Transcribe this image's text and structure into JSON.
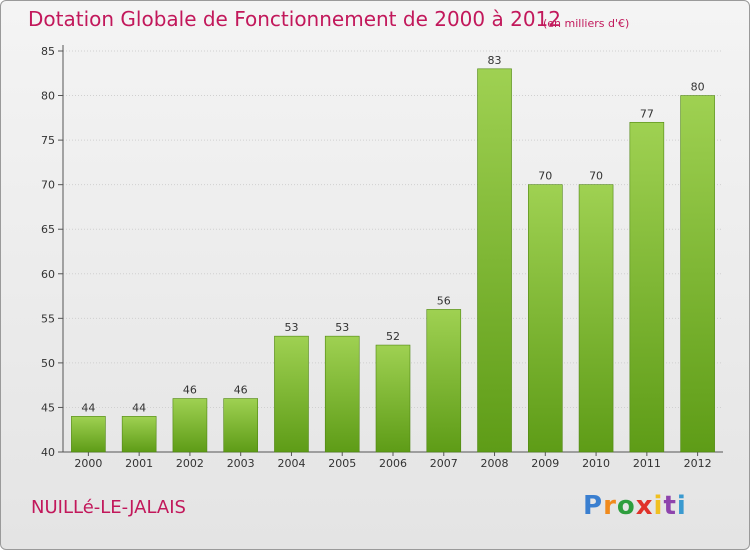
{
  "header": {
    "title": "Dotation Globale de Fonctionnement de 2000 à 2012",
    "unit": "(en milliers d'€)"
  },
  "footer": {
    "commune": "NUILLé-LE-JALAIS",
    "logo": {
      "letters": [
        "P",
        "r",
        "o",
        "x",
        "i",
        "t",
        "i"
      ],
      "colors": [
        "#3a7fd0",
        "#f08a1c",
        "#2e9e3e",
        "#e0322a",
        "#f0c020",
        "#8e44ad",
        "#3a9ad0"
      ]
    }
  },
  "colors": {
    "title": "#c2185b",
    "bar_top": "#9fd152",
    "bar_bottom": "#5e9c17",
    "bar_side": "#4f8612"
  },
  "chart_data": {
    "type": "bar",
    "title": "Dotation Globale de Fonctionnement de 2000 à 2012",
    "subtitle": "(en milliers d'€)",
    "categories": [
      "2000",
      "2001",
      "2002",
      "2003",
      "2004",
      "2005",
      "2006",
      "2007",
      "2008",
      "2009",
      "2010",
      "2011",
      "2012"
    ],
    "values": [
      44,
      44,
      46,
      46,
      53,
      53,
      52,
      56,
      83,
      70,
      70,
      77,
      80
    ],
    "ylim": [
      40,
      85
    ],
    "yticks": [
      40,
      45,
      50,
      55,
      60,
      65,
      70,
      75,
      80,
      85
    ],
    "grid": true,
    "legend": "none"
  }
}
